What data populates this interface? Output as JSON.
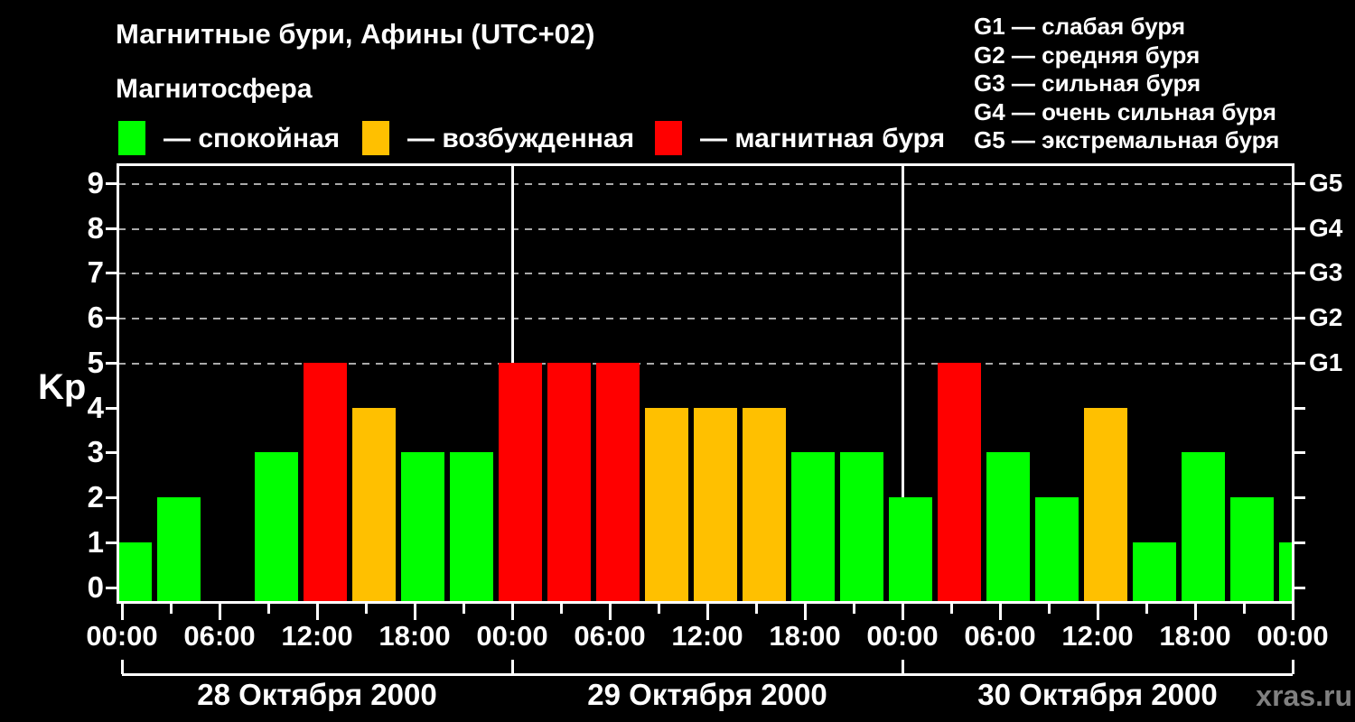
{
  "title": "Магнитные бури, Афины (UTC+02)",
  "subtitle": "Магнитосфера",
  "condition_legend": [
    {
      "key": "quiet",
      "label": "— спокойная",
      "color": "#00ff00"
    },
    {
      "key": "excited",
      "label": "— возбужденная",
      "color": "#ffc000"
    },
    {
      "key": "storm",
      "label": "— магнитная буря",
      "color": "#ff0000"
    }
  ],
  "storm_scale_legend": [
    "G1 — слабая буря",
    "G2 — средняя буря",
    "G3 — сильная буря",
    "G4 — очень сильная буря",
    "G5 — экстремальная буря"
  ],
  "watermark": "xras.ru",
  "colors": {
    "background": "#000000",
    "text": "#ffffff",
    "grid_dashed": "#aaaaaa",
    "axis": "#ffffff",
    "quiet": "#00ff00",
    "excited": "#ffc000",
    "storm": "#ff0000",
    "watermark": "#808080"
  },
  "chart_data": {
    "type": "bar",
    "title": "Магнитные бури, Афины (UTC+02)",
    "ylabel": "Kp",
    "ylim": [
      0,
      9
    ],
    "yticks": [
      0,
      1,
      2,
      3,
      4,
      5,
      6,
      7,
      8,
      9
    ],
    "dashed_gridline_levels": [
      5,
      6,
      7,
      8,
      9
    ],
    "right_axis_labels": [
      {
        "label": "G1",
        "value": 5
      },
      {
        "label": "G2",
        "value": 6
      },
      {
        "label": "G3",
        "value": 7
      },
      {
        "label": "G4",
        "value": 8
      },
      {
        "label": "G5",
        "value": 9
      }
    ],
    "hours_per_bar": 3,
    "x_tick_labels": [
      "00:00",
      "06:00",
      "12:00",
      "18:00",
      "00:00",
      "06:00",
      "12:00",
      "18:00",
      "00:00",
      "06:00",
      "12:00",
      "18:00",
      "00:00"
    ],
    "days": [
      {
        "date": "28 Октября 2000",
        "kp": [
          1,
          2,
          0,
          3,
          5,
          4,
          3,
          3
        ]
      },
      {
        "date": "29 Октября 2000",
        "kp": [
          5,
          5,
          5,
          4,
          4,
          4,
          3,
          3
        ]
      },
      {
        "date": "30 Октября 2000",
        "kp": [
          2,
          5,
          3,
          2,
          4,
          1,
          3,
          2
        ]
      }
    ],
    "next_day_partial_kp": 1,
    "legend_position": "top",
    "grid": "dashed horizontal at Kp 5-9 only"
  }
}
